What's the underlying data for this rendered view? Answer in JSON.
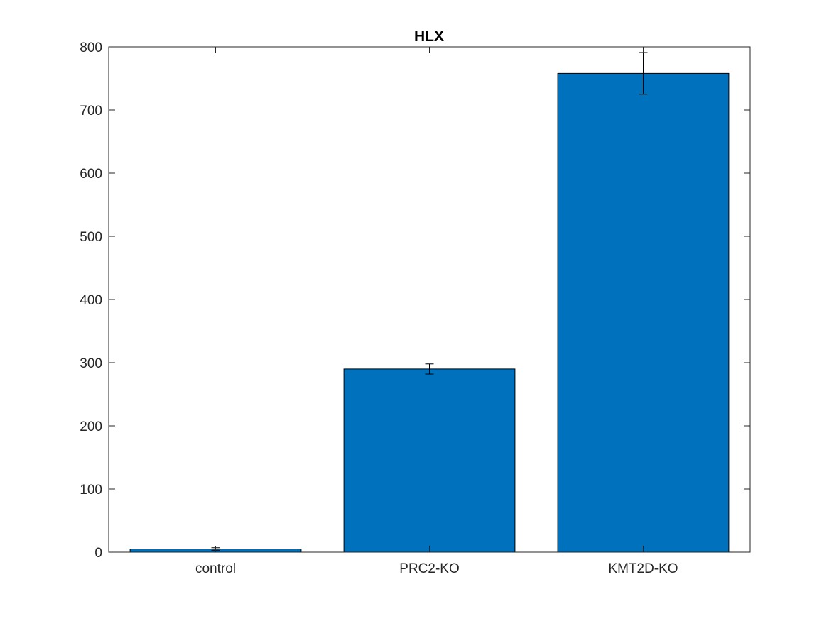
{
  "chart_data": {
    "type": "bar",
    "title": "HLX",
    "xlabel": "",
    "ylabel": "",
    "categories": [
      "control",
      "PRC2-KO",
      "KMT2D-KO"
    ],
    "values": [
      5,
      290,
      758
    ],
    "errors": [
      2,
      8,
      33
    ],
    "ylim": [
      0,
      800
    ],
    "yticks": [
      0,
      100,
      200,
      300,
      400,
      500,
      600,
      700,
      800
    ],
    "grid": false,
    "bar_color": "#0072BD",
    "bar_edge_color": "#000000"
  }
}
